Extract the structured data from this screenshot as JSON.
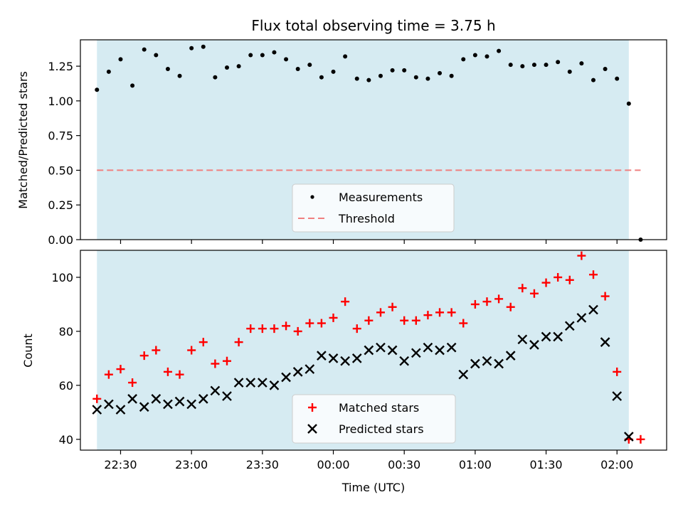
{
  "title": "Flux total observing time = 3.75 h",
  "colors": {
    "observing_window": "#add8e6",
    "measurement": "#000000",
    "threshold": "#f08080",
    "matched": "#ff0000",
    "predicted": "#000000"
  },
  "chart_data": [
    {
      "type": "scatter",
      "ylabel": "Matched/Predicted stars",
      "ylim": [
        0,
        1.44
      ],
      "yticks": [
        0.0,
        0.25,
        0.5,
        0.75,
        1.0,
        1.25
      ],
      "ytick_labels": [
        "0.00",
        "0.25",
        "0.50",
        "0.75",
        "1.00",
        "1.25"
      ],
      "legend_position": "lower center",
      "observing_window": {
        "start": "22:20",
        "end": "02:05"
      },
      "threshold": {
        "name": "Threshold",
        "value": 0.5,
        "from": "22:20",
        "to": "02:10"
      },
      "series": [
        {
          "name": "Measurements",
          "x": [
            "22:20",
            "22:25",
            "22:30",
            "22:35",
            "22:40",
            "22:45",
            "22:50",
            "22:55",
            "23:00",
            "23:05",
            "23:10",
            "23:15",
            "23:20",
            "23:25",
            "23:30",
            "23:35",
            "23:40",
            "23:45",
            "23:50",
            "23:55",
            "00:00",
            "00:05",
            "00:10",
            "00:15",
            "00:20",
            "00:25",
            "00:30",
            "00:35",
            "00:40",
            "00:45",
            "00:50",
            "00:55",
            "01:00",
            "01:05",
            "01:10",
            "01:15",
            "01:20",
            "01:25",
            "01:30",
            "01:35",
            "01:40",
            "01:45",
            "01:50",
            "01:55",
            "02:00",
            "02:05",
            "02:10"
          ],
          "y": [
            1.08,
            1.21,
            1.3,
            1.11,
            1.37,
            1.33,
            1.23,
            1.18,
            1.38,
            1.39,
            1.17,
            1.24,
            1.25,
            1.33,
            1.33,
            1.35,
            1.3,
            1.23,
            1.26,
            1.17,
            1.21,
            1.32,
            1.16,
            1.15,
            1.18,
            1.22,
            1.22,
            1.17,
            1.16,
            1.2,
            1.18,
            1.3,
            1.33,
            1.32,
            1.36,
            1.26,
            1.25,
            1.26,
            1.26,
            1.28,
            1.21,
            1.27,
            1.15,
            1.23,
            1.16,
            0.98,
            0.0
          ]
        }
      ]
    },
    {
      "type": "scatter",
      "xlabel": "Time (UTC)",
      "ylabel": "Count",
      "ylim": [
        36,
        110
      ],
      "yticks": [
        40,
        60,
        80,
        100
      ],
      "ytick_labels": [
        "40",
        "60",
        "80",
        "100"
      ],
      "xticks": [
        "22:30",
        "23:00",
        "23:30",
        "00:00",
        "00:30",
        "01:00",
        "01:30",
        "02:00"
      ],
      "xtick_labels": [
        "22:30",
        "23:00",
        "23:30",
        "00:00",
        "00:30",
        "01:00",
        "01:30",
        "02:00"
      ],
      "x_range": [
        "22:13",
        "02:21"
      ],
      "legend_position": "lower center",
      "observing_window": {
        "start": "22:20",
        "end": "02:05"
      },
      "series": [
        {
          "name": "Matched stars",
          "marker": "plus",
          "x": [
            "22:20",
            "22:25",
            "22:30",
            "22:35",
            "22:40",
            "22:45",
            "22:50",
            "22:55",
            "23:00",
            "23:05",
            "23:10",
            "23:15",
            "23:20",
            "23:25",
            "23:30",
            "23:35",
            "23:40",
            "23:45",
            "23:50",
            "23:55",
            "00:00",
            "00:05",
            "00:10",
            "00:15",
            "00:20",
            "00:25",
            "00:30",
            "00:35",
            "00:40",
            "00:45",
            "00:50",
            "00:55",
            "01:00",
            "01:05",
            "01:10",
            "01:15",
            "01:20",
            "01:25",
            "01:30",
            "01:35",
            "01:40",
            "01:45",
            "01:50",
            "01:55",
            "02:00",
            "02:05",
            "02:10"
          ],
          "y": [
            55,
            64,
            66,
            61,
            71,
            73,
            65,
            64,
            73,
            76,
            68,
            69,
            76,
            81,
            81,
            81,
            82,
            80,
            83,
            83,
            85,
            91,
            81,
            84,
            87,
            89,
            84,
            84,
            86,
            87,
            87,
            83,
            90,
            91,
            92,
            89,
            96,
            94,
            98,
            100,
            99,
            108,
            101,
            93,
            65,
            40,
            40
          ]
        },
        {
          "name": "Predicted stars",
          "marker": "x",
          "x": [
            "22:20",
            "22:25",
            "22:30",
            "22:35",
            "22:40",
            "22:45",
            "22:50",
            "22:55",
            "23:00",
            "23:05",
            "23:10",
            "23:15",
            "23:20",
            "23:25",
            "23:30",
            "23:35",
            "23:40",
            "23:45",
            "23:50",
            "23:55",
            "00:00",
            "00:05",
            "00:10",
            "00:15",
            "00:20",
            "00:25",
            "00:30",
            "00:35",
            "00:40",
            "00:45",
            "00:50",
            "00:55",
            "01:00",
            "01:05",
            "01:10",
            "01:15",
            "01:20",
            "01:25",
            "01:30",
            "01:35",
            "01:40",
            "01:45",
            "01:50",
            "01:55",
            "02:00",
            "02:05"
          ],
          "y": [
            51,
            53,
            51,
            55,
            52,
            55,
            53,
            54,
            53,
            55,
            58,
            56,
            61,
            61,
            61,
            60,
            63,
            65,
            66,
            71,
            70,
            69,
            70,
            73,
            74,
            73,
            69,
            72,
            74,
            73,
            74,
            64,
            68,
            69,
            68,
            71,
            77,
            75,
            78,
            78,
            82,
            85,
            88,
            76,
            56,
            41
          ]
        }
      ]
    }
  ]
}
